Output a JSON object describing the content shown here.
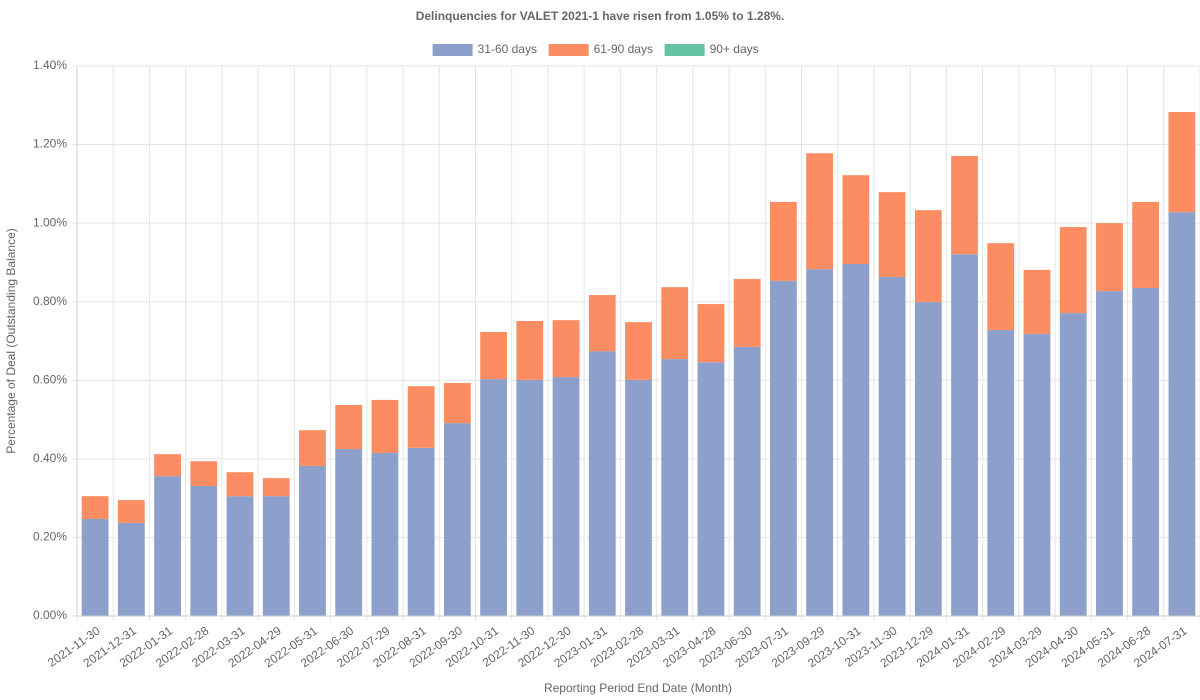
{
  "chart_data": {
    "type": "stacked_bar",
    "title": "Delinquencies for VALET 2021-1 have risen from 1.05% to 1.28%.",
    "x_label": "Reporting Period End Date (Month)",
    "y_label": "Percentage of Deal (Outstanding Balance)",
    "categories": [
      "2021-11-30",
      "2021-12-31",
      "2022-01-31",
      "2022-02-28",
      "2022-03-31",
      "2022-04-29",
      "2022-05-31",
      "2022-06-30",
      "2022-07-29",
      "2022-08-31",
      "2022-09-30",
      "2022-10-31",
      "2022-11-30",
      "2022-12-30",
      "2023-01-31",
      "2023-02-28",
      "2023-03-31",
      "2023-04-28",
      "2023-06-30",
      "2023-07-31",
      "2023-09-29",
      "2023-10-31",
      "2023-11-30",
      "2023-12-29",
      "2024-01-31",
      "2024-02-29",
      "2024-03-29",
      "2024-04-30",
      "2024-05-31",
      "2024-06-28",
      "2024-07-31"
    ],
    "series": [
      {
        "name": "31-60 days",
        "color": "#8da0cb",
        "values": [
          0.247,
          0.237,
          0.356,
          0.331,
          0.305,
          0.305,
          0.382,
          0.425,
          0.415,
          0.428,
          0.491,
          0.603,
          0.601,
          0.608,
          0.674,
          0.601,
          0.654,
          0.646,
          0.685,
          0.853,
          0.883,
          0.896,
          0.863,
          0.799,
          0.921,
          0.728,
          0.718,
          0.771,
          0.827,
          0.835,
          1.028
        ]
      },
      {
        "name": "61-90 days",
        "color": "#fc8d62",
        "values": [
          0.058,
          0.058,
          0.056,
          0.063,
          0.061,
          0.046,
          0.091,
          0.112,
          0.135,
          0.157,
          0.102,
          0.12,
          0.15,
          0.145,
          0.143,
          0.147,
          0.183,
          0.148,
          0.173,
          0.201,
          0.295,
          0.226,
          0.216,
          0.234,
          0.25,
          0.221,
          0.163,
          0.219,
          0.173,
          0.219,
          0.255
        ]
      },
      {
        "name": "90+ days",
        "color": "#66c2a5",
        "values": [
          0,
          0,
          0,
          0,
          0,
          0,
          0,
          0,
          0,
          0,
          0,
          0,
          0,
          0,
          0,
          0,
          0,
          0,
          0,
          0,
          0,
          0,
          0,
          0,
          0,
          0,
          0,
          0,
          0,
          0,
          0
        ]
      }
    ],
    "ylim": [
      0,
      1.4
    ],
    "yticks": [
      {
        "value": 0,
        "label": "0.00%"
      },
      {
        "value": 0.2,
        "label": "0.20%"
      },
      {
        "value": 0.4,
        "label": "0.40%"
      },
      {
        "value": 0.6,
        "label": "0.60%"
      },
      {
        "value": 0.8,
        "label": "0.80%"
      },
      {
        "value": 1.0,
        "label": "1.00%"
      },
      {
        "value": 1.2,
        "label": "1.20%"
      },
      {
        "value": 1.4,
        "label": "1.40%"
      }
    ],
    "grid": true,
    "legend": "top"
  }
}
